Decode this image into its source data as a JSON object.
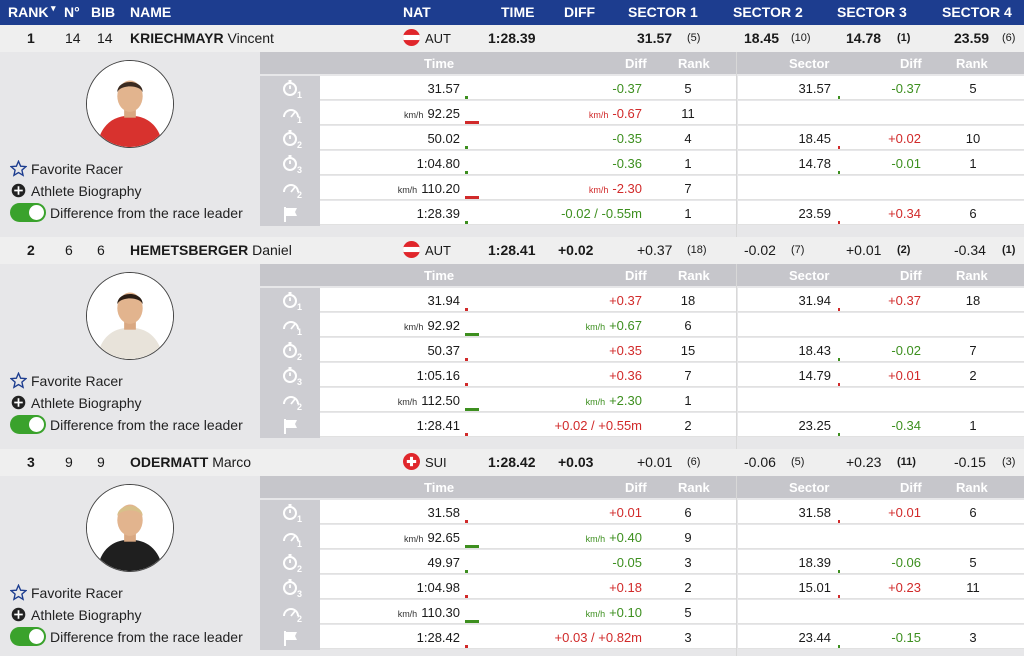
{
  "header": {
    "rank": "RANK",
    "no": "N°",
    "bib": "BIB",
    "name": "NAME",
    "nat": "NAT",
    "time": "TIME",
    "diff": "DIFF",
    "sector1": "SECTOR 1",
    "sector2": "SECTOR 2",
    "sector3": "SECTOR 3",
    "sector4": "SECTOR 4"
  },
  "grid_headers": {
    "time": "Time",
    "diff": "Diff",
    "rank": "Rank",
    "sector": "Sector",
    "sdiff": "Diff",
    "srank": "Rank"
  },
  "actions": {
    "favorite": "Favorite Racer",
    "bio": "Athlete Biography",
    "toggle": "Difference from the race leader"
  },
  "colors": {
    "header": "#1d3d8f",
    "negative": "#3d8f1f",
    "positive": "#d12a2a",
    "toggle": "#3aa22c"
  },
  "units": {
    "kmh": "km/h"
  },
  "racers": [
    {
      "rank": "1",
      "no": "14",
      "bib": "14",
      "surname": "KRIECHMAYR",
      "firstname": "Vincent",
      "nat": "AUT",
      "flag": "austria-flag",
      "time": "1:28.39",
      "diff": "",
      "s1": "31.57",
      "s1r": "(5)",
      "s2": "18.45",
      "s2r": "(10)",
      "s3": "14.78",
      "s3r": "(1)",
      "s4": "23.59",
      "s4r": "(6)",
      "bold_sectors": true,
      "rows": [
        {
          "icon": "stopwatch-icon",
          "sub": "1",
          "time": "31.57",
          "unit": false,
          "diff": "-0.37",
          "dunit": false,
          "dsign": "neg",
          "rank": "5",
          "sector": "31.57",
          "sdiff": "-0.37",
          "ssign": "neg",
          "srank": "5"
        },
        {
          "icon": "speedometer-icon",
          "sub": "1",
          "time": "92.25",
          "unit": true,
          "diff": "-0.67",
          "dunit": true,
          "dsign": "pos",
          "rank": "11",
          "sector": "",
          "sdiff": "",
          "ssign": "",
          "srank": ""
        },
        {
          "icon": "stopwatch-icon",
          "sub": "2",
          "time": "50.02",
          "unit": false,
          "diff": "-0.35",
          "dunit": false,
          "dsign": "neg",
          "rank": "4",
          "sector": "18.45",
          "sdiff": "+0.02",
          "ssign": "pos",
          "srank": "10"
        },
        {
          "icon": "stopwatch-icon",
          "sub": "3",
          "time": "1:04.80",
          "unit": false,
          "diff": "-0.36",
          "dunit": false,
          "dsign": "neg",
          "rank": "1",
          "sector": "14.78",
          "sdiff": "-0.01",
          "ssign": "neg",
          "srank": "1"
        },
        {
          "icon": "speedometer-icon",
          "sub": "2",
          "time": "110.20",
          "unit": true,
          "diff": "-2.30",
          "dunit": true,
          "dsign": "pos",
          "rank": "7",
          "sector": "",
          "sdiff": "",
          "ssign": "",
          "srank": ""
        },
        {
          "icon": "finish-flag-icon",
          "sub": "",
          "time": "1:28.39",
          "unit": false,
          "diff": "-0.02 / -0.55m",
          "dunit": false,
          "dsign": "neg",
          "rank": "1",
          "sector": "23.59",
          "sdiff": "+0.34",
          "ssign": "pos",
          "srank": "6"
        }
      ]
    },
    {
      "rank": "2",
      "no": "6",
      "bib": "6",
      "surname": "HEMETSBERGER",
      "firstname": "Daniel",
      "nat": "AUT",
      "flag": "austria-flag",
      "time": "1:28.41",
      "diff": "+0.02",
      "s1": "+0.37",
      "s1r": "(18)",
      "s2": "-0.02",
      "s2r": "(7)",
      "s3": "+0.01",
      "s3r": "(2)",
      "s4": "-0.34",
      "s4r": "(1)",
      "bold_sectors": false,
      "rows": [
        {
          "icon": "stopwatch-icon",
          "sub": "1",
          "time": "31.94",
          "unit": false,
          "diff": "+0.37",
          "dunit": false,
          "dsign": "pos",
          "rank": "18",
          "sector": "31.94",
          "sdiff": "+0.37",
          "ssign": "pos",
          "srank": "18"
        },
        {
          "icon": "speedometer-icon",
          "sub": "1",
          "time": "92.92",
          "unit": true,
          "diff": "+0.67",
          "dunit": true,
          "dsign": "neg",
          "rank": "6",
          "sector": "",
          "sdiff": "",
          "ssign": "",
          "srank": ""
        },
        {
          "icon": "stopwatch-icon",
          "sub": "2",
          "time": "50.37",
          "unit": false,
          "diff": "+0.35",
          "dunit": false,
          "dsign": "pos",
          "rank": "15",
          "sector": "18.43",
          "sdiff": "-0.02",
          "ssign": "neg",
          "srank": "7"
        },
        {
          "icon": "stopwatch-icon",
          "sub": "3",
          "time": "1:05.16",
          "unit": false,
          "diff": "+0.36",
          "dunit": false,
          "dsign": "pos",
          "rank": "7",
          "sector": "14.79",
          "sdiff": "+0.01",
          "ssign": "pos",
          "srank": "2"
        },
        {
          "icon": "speedometer-icon",
          "sub": "2",
          "time": "112.50",
          "unit": true,
          "diff": "+2.30",
          "dunit": true,
          "dsign": "neg",
          "rank": "1",
          "sector": "",
          "sdiff": "",
          "ssign": "",
          "srank": ""
        },
        {
          "icon": "finish-flag-icon",
          "sub": "",
          "time": "1:28.41",
          "unit": false,
          "diff": "+0.02 / +0.55m",
          "dunit": false,
          "dsign": "pos",
          "rank": "2",
          "sector": "23.25",
          "sdiff": "-0.34",
          "ssign": "neg",
          "srank": "1"
        }
      ]
    },
    {
      "rank": "3",
      "no": "9",
      "bib": "9",
      "surname": "ODERMATT",
      "firstname": "Marco",
      "nat": "SUI",
      "flag": "switzerland-flag",
      "time": "1:28.42",
      "diff": "+0.03",
      "s1": "+0.01",
      "s1r": "(6)",
      "s2": "-0.06",
      "s2r": "(5)",
      "s3": "+0.23",
      "s3r": "(11)",
      "s4": "-0.15",
      "s4r": "(3)",
      "bold_sectors": false,
      "rows": [
        {
          "icon": "stopwatch-icon",
          "sub": "1",
          "time": "31.58",
          "unit": false,
          "diff": "+0.01",
          "dunit": false,
          "dsign": "pos",
          "rank": "6",
          "sector": "31.58",
          "sdiff": "+0.01",
          "ssign": "pos",
          "srank": "6"
        },
        {
          "icon": "speedometer-icon",
          "sub": "1",
          "time": "92.65",
          "unit": true,
          "diff": "+0.40",
          "dunit": true,
          "dsign": "neg",
          "rank": "9",
          "sector": "",
          "sdiff": "",
          "ssign": "",
          "srank": ""
        },
        {
          "icon": "stopwatch-icon",
          "sub": "2",
          "time": "49.97",
          "unit": false,
          "diff": "-0.05",
          "dunit": false,
          "dsign": "neg",
          "rank": "3",
          "sector": "18.39",
          "sdiff": "-0.06",
          "ssign": "neg",
          "srank": "5"
        },
        {
          "icon": "stopwatch-icon",
          "sub": "3",
          "time": "1:04.98",
          "unit": false,
          "diff": "+0.18",
          "dunit": false,
          "dsign": "pos",
          "rank": "2",
          "sector": "15.01",
          "sdiff": "+0.23",
          "ssign": "pos",
          "srank": "11"
        },
        {
          "icon": "speedometer-icon",
          "sub": "2",
          "time": "110.30",
          "unit": true,
          "diff": "+0.10",
          "dunit": true,
          "dsign": "neg",
          "rank": "5",
          "sector": "",
          "sdiff": "",
          "ssign": "",
          "srank": ""
        },
        {
          "icon": "finish-flag-icon",
          "sub": "",
          "time": "1:28.42",
          "unit": false,
          "diff": "+0.03 / +0.82m",
          "dunit": false,
          "dsign": "pos",
          "rank": "3",
          "sector": "23.44",
          "sdiff": "-0.15",
          "ssign": "neg",
          "srank": "3"
        }
      ]
    }
  ]
}
